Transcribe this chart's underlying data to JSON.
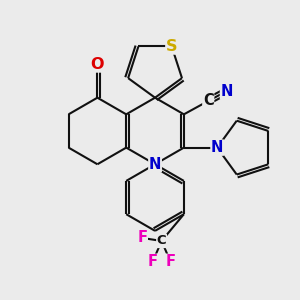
{
  "bg_color": "#ebebeb",
  "bond_color": "#111111",
  "bond_lw": 1.5,
  "dbl_sep": 0.1,
  "atom_colors": {
    "S": "#ccaa00",
    "O": "#dd0000",
    "N": "#0000cc",
    "C": "#111111",
    "F": "#ee00bb"
  },
  "fs": 10.5
}
